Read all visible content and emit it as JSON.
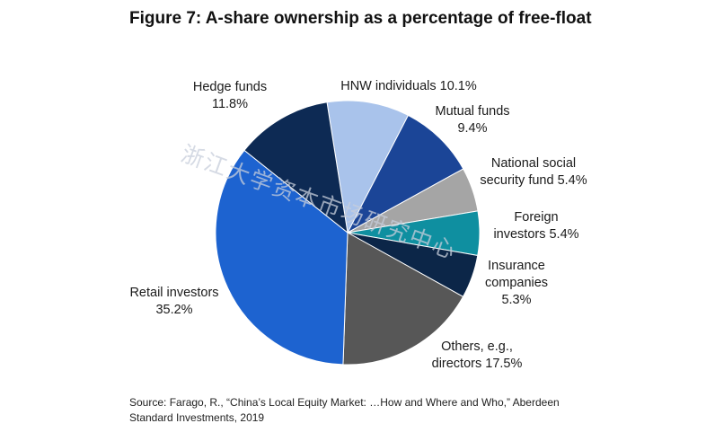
{
  "title": "Figure 7: A-share ownership as a percentage of free-float",
  "watermark": "浙江大学资本市场研究中心",
  "source_line1": "Source: Farago, R., “China’s Local Equity Market: …How and Where and Who,” Aberdeen",
  "source_line2": "Standard Investments, 2019",
  "chart_data": {
    "type": "pie",
    "title": "Figure 7: A-share ownership as a percentage of free-float",
    "slices": [
      {
        "label_lines": [
          "HNW individuals 10.1%"
        ],
        "value": 10.1,
        "color": "#a9c3eb"
      },
      {
        "label_lines": [
          "Mutual funds",
          "9.4%"
        ],
        "value": 9.4,
        "color": "#1b4597"
      },
      {
        "label_lines": [
          "National social",
          "security fund 5.4%"
        ],
        "value": 5.4,
        "color": "#a5a5a5"
      },
      {
        "label_lines": [
          "Foreign",
          "investors 5.4%"
        ],
        "value": 5.4,
        "color": "#0f8fa0"
      },
      {
        "label_lines": [
          "Insurance",
          "companies",
          "5.3%"
        ],
        "value": 5.3,
        "color": "#0c2648"
      },
      {
        "label_lines": [
          "Others, e.g.,",
          "directors 17.5%"
        ],
        "value": 17.5,
        "color": "#575757"
      },
      {
        "label_lines": [
          "Retail investors",
          "35.2%"
        ],
        "value": 35.2,
        "color": "#1d63d0"
      },
      {
        "label_lines": [
          "Hedge funds",
          "11.8%"
        ],
        "value": 11.8,
        "color": "#0d2a54"
      }
    ]
  }
}
